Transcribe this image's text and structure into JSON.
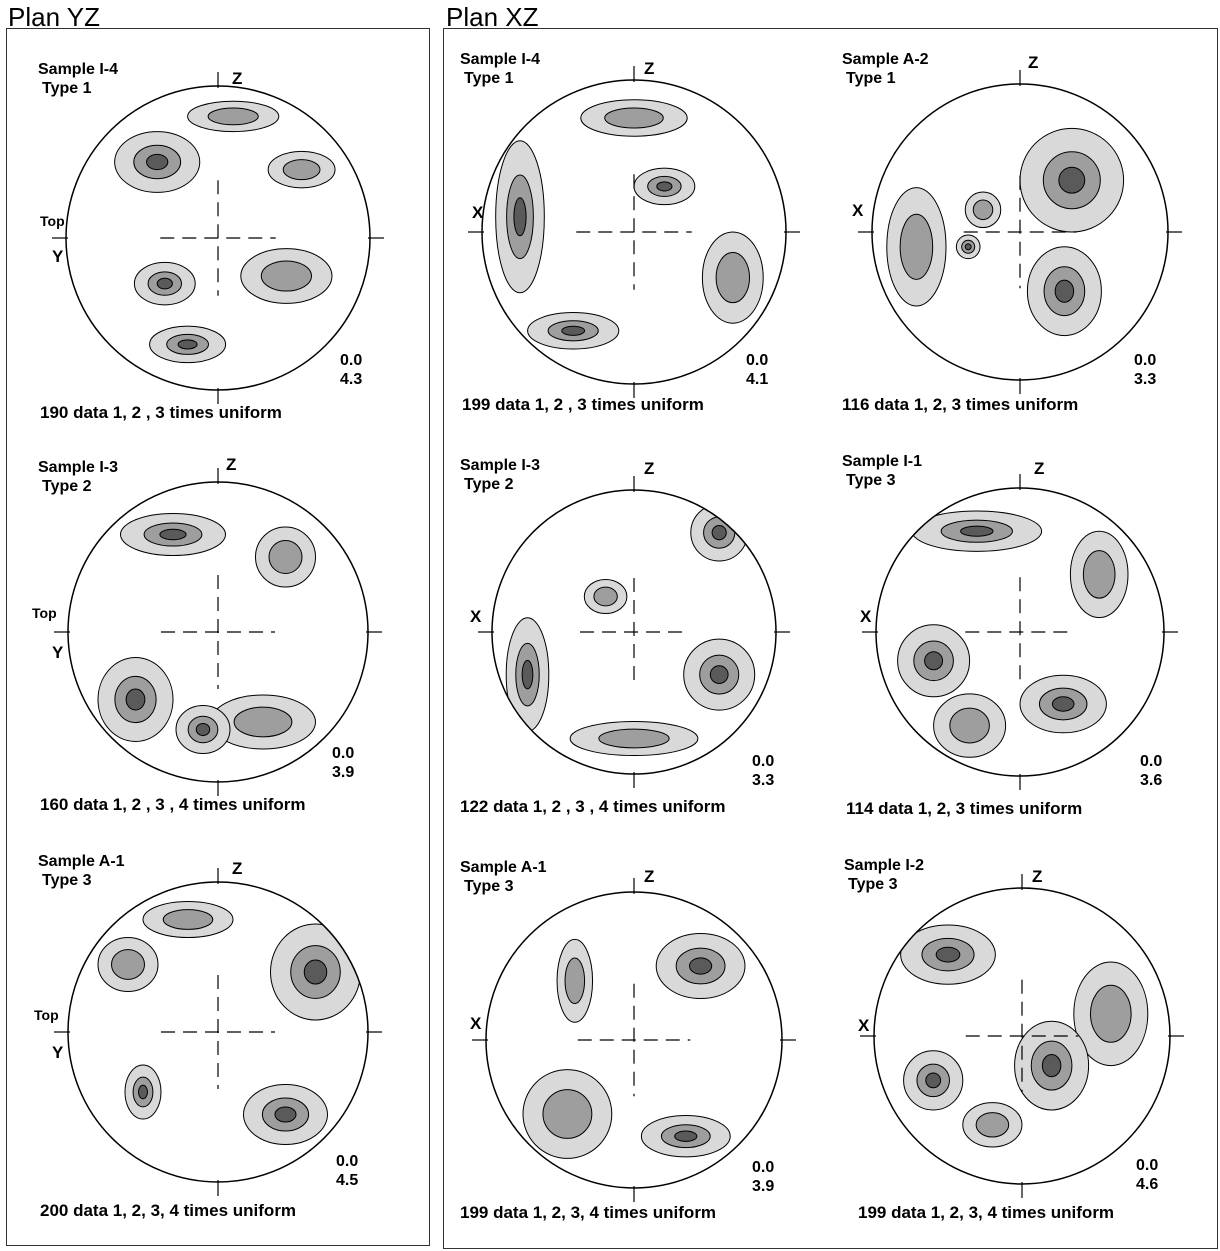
{
  "panels": [
    {
      "title": "Plan YZ"
    },
    {
      "title": "Plan XZ"
    }
  ],
  "colors": {
    "stipple": "#d9d9d9",
    "mid": "#9e9e9e",
    "dark": "#5a5a5a",
    "max": "#000000"
  },
  "nets": [
    {
      "sample": "Sample I-4",
      "type": "Type 1",
      "vaxis": "Z",
      "haxis": "Y",
      "top": "Top",
      "min": "0.0",
      "max": "4.3",
      "caption": "190 data 1, 2 , 3 times uniform"
    },
    {
      "sample": "Sample I-3",
      "type": "Type 2",
      "vaxis": "Z",
      "haxis": "Y",
      "top": "Top",
      "min": "0.0",
      "max": "3.9",
      "caption": "160 data  1, 2 , 3 , 4 times uniform"
    },
    {
      "sample": "Sample A-1",
      "type": "Type 3",
      "vaxis": "Z",
      "haxis": "Y",
      "top": "Top",
      "min": "0.0",
      "max": "4.5",
      "caption": "200 data 1, 2, 3, 4 times uniform"
    },
    {
      "sample": "Sample I-4",
      "type": "Type 1",
      "vaxis": "Z",
      "haxis": "X",
      "min": "0.0",
      "max": "4.1",
      "caption": "199 data  1, 2 , 3 times uniform"
    },
    {
      "sample": "Sample A-2",
      "type": "Type 1",
      "vaxis": "Z",
      "haxis": "X",
      "min": "0.0",
      "max": "3.3",
      "caption": "116 data 1, 2, 3  times uniform"
    },
    {
      "sample": "Sample  I-3",
      "type": "Type 2",
      "vaxis": "Z",
      "haxis": "X",
      "min": "0.0",
      "max": "3.3",
      "caption": "122 data 1, 2 , 3 , 4 times uniform"
    },
    {
      "sample": "Sample I-1",
      "type": "Type 3",
      "vaxis": "Z",
      "haxis": "X",
      "min": "0.0",
      "max": "3.6",
      "caption": "114 data 1, 2, 3 times uniform"
    },
    {
      "sample": "Sample A-1",
      "type": "Type 3",
      "vaxis": "Z",
      "haxis": "X",
      "min": "0.0",
      "max": "3.9",
      "caption": "199 data 1, 2, 3, 4 times uniform"
    },
    {
      "sample": "Sample I-2",
      "type": "Type 3",
      "vaxis": "Z",
      "haxis": "X",
      "min": "0.0",
      "max": "4.6",
      "caption": "199 data 1, 2, 3, 4 times uniform"
    }
  ]
}
